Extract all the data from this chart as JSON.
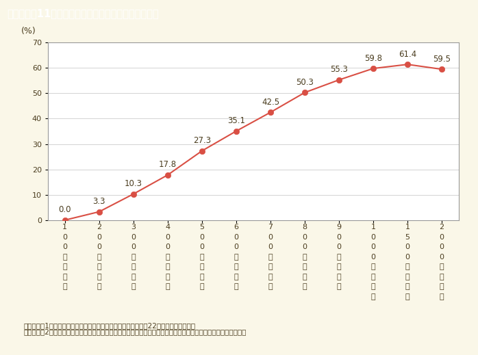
{
  "title": "第１－２－11図　給与階級別の配偶者控除の適用割合",
  "title_bg_color": "#8B7557",
  "title_text_color": "#FFFFFF",
  "bg_color": "#FAF7E8",
  "plot_bg_color": "#FFFFFF",
  "values": [
    0.0,
    3.3,
    10.3,
    17.8,
    27.3,
    35.1,
    42.5,
    50.3,
    55.3,
    59.8,
    61.4,
    59.5
  ],
  "categories": [
    "100万円以下",
    "200万円以下",
    "300万円以下",
    "400万円以下",
    "500万円以下",
    "600万円以下",
    "700万円以下",
    "800万円以下",
    "900万円以下",
    "1000万円以下",
    "1500万円以下",
    "2000万円以下"
  ],
  "ylim": [
    0,
    70
  ],
  "yticks": [
    0,
    10,
    20,
    30,
    40,
    50,
    60,
    70
  ],
  "ylabel": "(%)",
  "line_color": "#D94F44",
  "marker_color": "#D94F44",
  "marker_size": 6,
  "annotation_color": "#4A3C1E",
  "annotation_fontsize": 8.5,
  "tick_fontsize": 8,
  "note_line1": "（備考）　1．国税庁「税務統計から見た民間給与の実態（平成22年分）」より作成。",
  "note_line2": "　　　　　2．「年末調整を行った１年を通じて勤務した給与所得者」の総数に対する配偶者控除の適用者の割合。",
  "note_fontsize": 7.5,
  "spine_color": "#999999"
}
